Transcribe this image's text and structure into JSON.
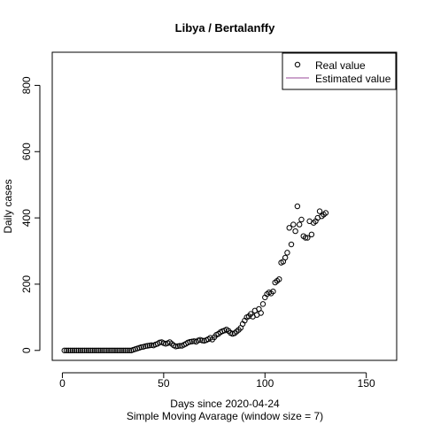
{
  "chart_data": {
    "type": "scatter",
    "title": "Libya / Bertalanffy",
    "xlabel": "Days since 2020-04-24",
    "subtitle": "Simple Moving Avarage (window size = 7)",
    "ylabel": "Daily cases",
    "xlim": [
      -5,
      165
    ],
    "ylim": [
      -30,
      900
    ],
    "xticks": [
      "0",
      "50",
      "100",
      "150"
    ],
    "yticks": [
      "0",
      "200",
      "400",
      "600",
      "800"
    ],
    "legend": {
      "position": "top-right",
      "items": [
        {
          "label": "Real value",
          "symbol": "open-circle",
          "color": "#000000"
        },
        {
          "label": "Estimated value",
          "symbol": "line",
          "color": "#9a4a9a"
        }
      ]
    },
    "series": [
      {
        "name": "Real value",
        "x": [
          1,
          2,
          3,
          4,
          5,
          6,
          7,
          8,
          9,
          10,
          11,
          12,
          13,
          14,
          15,
          16,
          17,
          18,
          19,
          20,
          21,
          22,
          23,
          24,
          25,
          26,
          27,
          28,
          29,
          30,
          31,
          32,
          33,
          34,
          35,
          36,
          37,
          38,
          39,
          40,
          41,
          42,
          43,
          44,
          45,
          46,
          47,
          48,
          49,
          50,
          51,
          52,
          53,
          54,
          55,
          56,
          57,
          58,
          59,
          60,
          61,
          62,
          63,
          64,
          65,
          66,
          67,
          68,
          69,
          70,
          71,
          72,
          73,
          74,
          75,
          76,
          77,
          78,
          79,
          80,
          81,
          82,
          83,
          84,
          85,
          86,
          87,
          88,
          89,
          90,
          91,
          92,
          93,
          94,
          95,
          96,
          97,
          98,
          99,
          100,
          101,
          102,
          103,
          104,
          105,
          106,
          107,
          108,
          109,
          110,
          111,
          112,
          113,
          114,
          115,
          116,
          117,
          118,
          119,
          120,
          121,
          122,
          123,
          124,
          125,
          126,
          127,
          128,
          129,
          130
        ],
        "y": [
          0,
          0,
          0,
          0,
          0,
          0,
          0,
          0,
          0,
          0,
          0,
          0,
          0,
          0,
          0,
          0,
          0,
          0,
          0,
          0,
          0,
          0,
          0,
          0,
          0,
          0,
          0,
          0,
          0,
          0,
          0,
          0,
          0,
          0,
          2,
          4,
          6,
          8,
          10,
          11,
          13,
          14,
          15,
          16,
          15,
          18,
          20,
          24,
          25,
          22,
          20,
          22,
          25,
          20,
          15,
          12,
          13,
          14,
          14,
          17,
          20,
          24,
          26,
          27,
          28,
          26,
          30,
          32,
          30,
          29,
          31,
          34,
          38,
          33,
          40,
          47,
          50,
          55,
          58,
          60,
          63,
          59,
          53,
          50,
          52,
          57,
          62,
          68,
          80,
          90,
          100,
          103,
          110,
          102,
          120,
          107,
          125,
          113,
          140,
          160,
          170,
          175,
          172,
          178,
          205,
          210,
          215,
          265,
          268,
          280,
          295,
          370,
          320,
          380,
          360,
          435,
          380,
          395,
          345,
          340,
          340,
          390,
          350,
          385,
          390,
          400,
          420,
          405,
          410,
          415
        ]
      }
    ]
  }
}
